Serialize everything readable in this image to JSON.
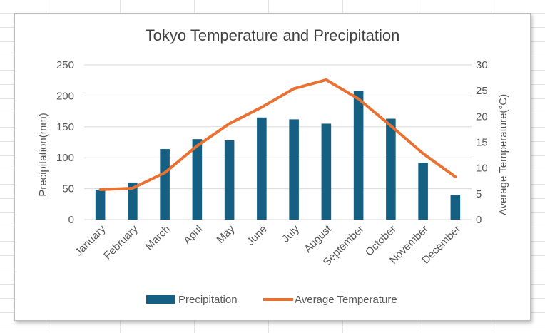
{
  "chart_data": {
    "type": "bar",
    "title": "Tokyo Temperature and Precipitation",
    "xlabel": "",
    "ylabel": "Precipitation(mm)",
    "y2label": "Average Temperature(°C)",
    "categories": [
      "January",
      "February",
      "March",
      "April",
      "May",
      "June",
      "July",
      "August",
      "September",
      "October",
      "November",
      "December"
    ],
    "ylim": [
      0,
      250
    ],
    "y_ticks": [
      "0",
      "50",
      "100",
      "150",
      "200",
      "250"
    ],
    "y2lim": [
      0,
      30
    ],
    "y2_ticks": [
      "0",
      "5",
      "10",
      "15",
      "20",
      "25",
      "30"
    ],
    "grid": true,
    "legend_position": "bottom",
    "series": [
      {
        "name": "Precipitation",
        "type": "bar",
        "axis": "left",
        "color": "#156082",
        "values": [
          48,
          60,
          114,
          130,
          128,
          165,
          162,
          155,
          208,
          163,
          92,
          40
        ]
      },
      {
        "name": "Average Temperature",
        "type": "line",
        "axis": "right",
        "color": "#E97132",
        "values": [
          5.8,
          6.1,
          9.1,
          14.3,
          18.6,
          21.8,
          25.4,
          27.1,
          23.4,
          18.2,
          12.8,
          8.3
        ]
      }
    ]
  }
}
